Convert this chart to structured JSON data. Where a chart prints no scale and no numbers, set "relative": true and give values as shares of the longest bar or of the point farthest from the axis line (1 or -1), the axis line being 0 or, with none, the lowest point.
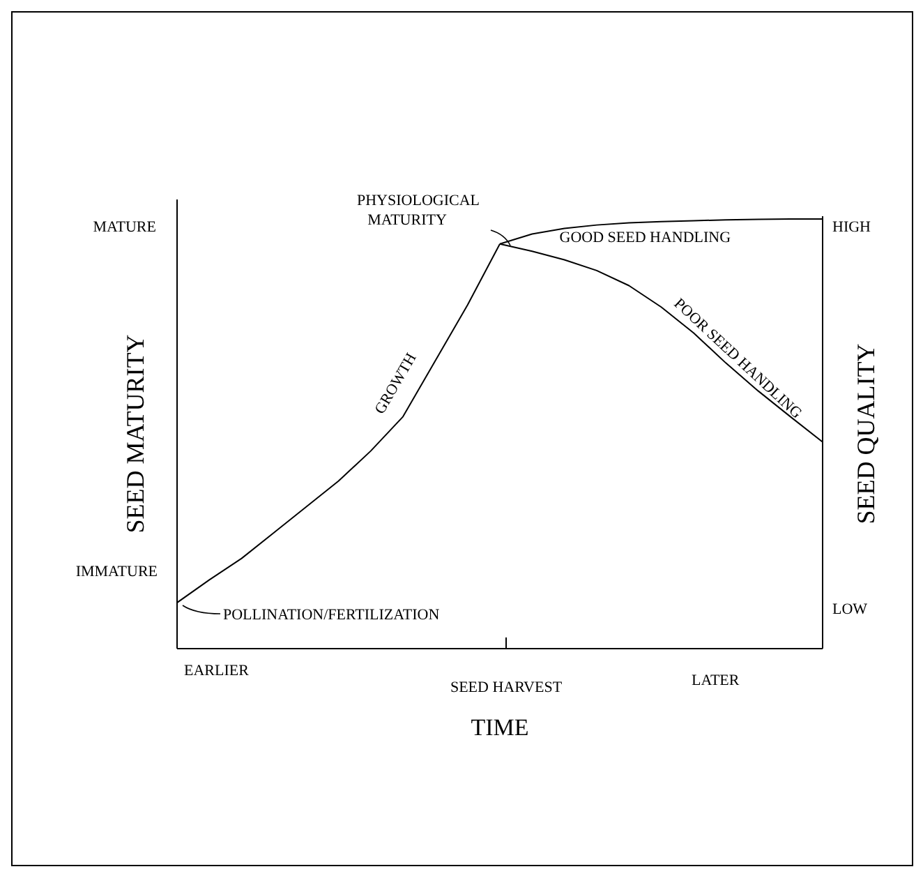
{
  "chart_data": {
    "type": "line",
    "relative": true,
    "xlabel": "TIME",
    "ylabel": "SEED MATURITY",
    "y2label": "SEED QUALITY",
    "line_style": "solid",
    "marker": "none",
    "categories": [
      null,
      null,
      null,
      null,
      null,
      null,
      null,
      null,
      null,
      null,
      null,
      null,
      null,
      null,
      null,
      null,
      null,
      null,
      null,
      null,
      null
    ],
    "series": [
      {
        "name": "GROWTH",
        "color": "#000000",
        "values": [
          0.107,
          0.16,
          0.21,
          0.27,
          0.33,
          0.39,
          0.46,
          0.54,
          0.67,
          0.8,
          0.942,
          null,
          null,
          null,
          null,
          null,
          null,
          null,
          null,
          null,
          null
        ]
      },
      {
        "name": "GOOD SEED HANDLING",
        "color": "#000000",
        "values": [
          null,
          null,
          null,
          null,
          null,
          null,
          null,
          null,
          null,
          null,
          0.942,
          0.965,
          0.978,
          0.986,
          0.991,
          0.994,
          0.996,
          0.998,
          0.999,
          1,
          1
        ]
      },
      {
        "name": "POOR SEED HANDLING",
        "color": "#000000",
        "values": [
          null,
          null,
          null,
          null,
          null,
          null,
          null,
          null,
          null,
          null,
          0.942,
          0.925,
          0.905,
          0.88,
          0.845,
          0.795,
          0.735,
          0.665,
          0.6,
          0.54,
          0.481
        ]
      }
    ],
    "annotations": [
      "MATURE",
      "IMMATURE",
      "HIGH",
      "LOW",
      "EARLIER",
      "LATER",
      "SEED HARVEST",
      "PHYSIOLOGICAL MATURITY",
      "POLLINATION/FERTILIZATION"
    ]
  }
}
